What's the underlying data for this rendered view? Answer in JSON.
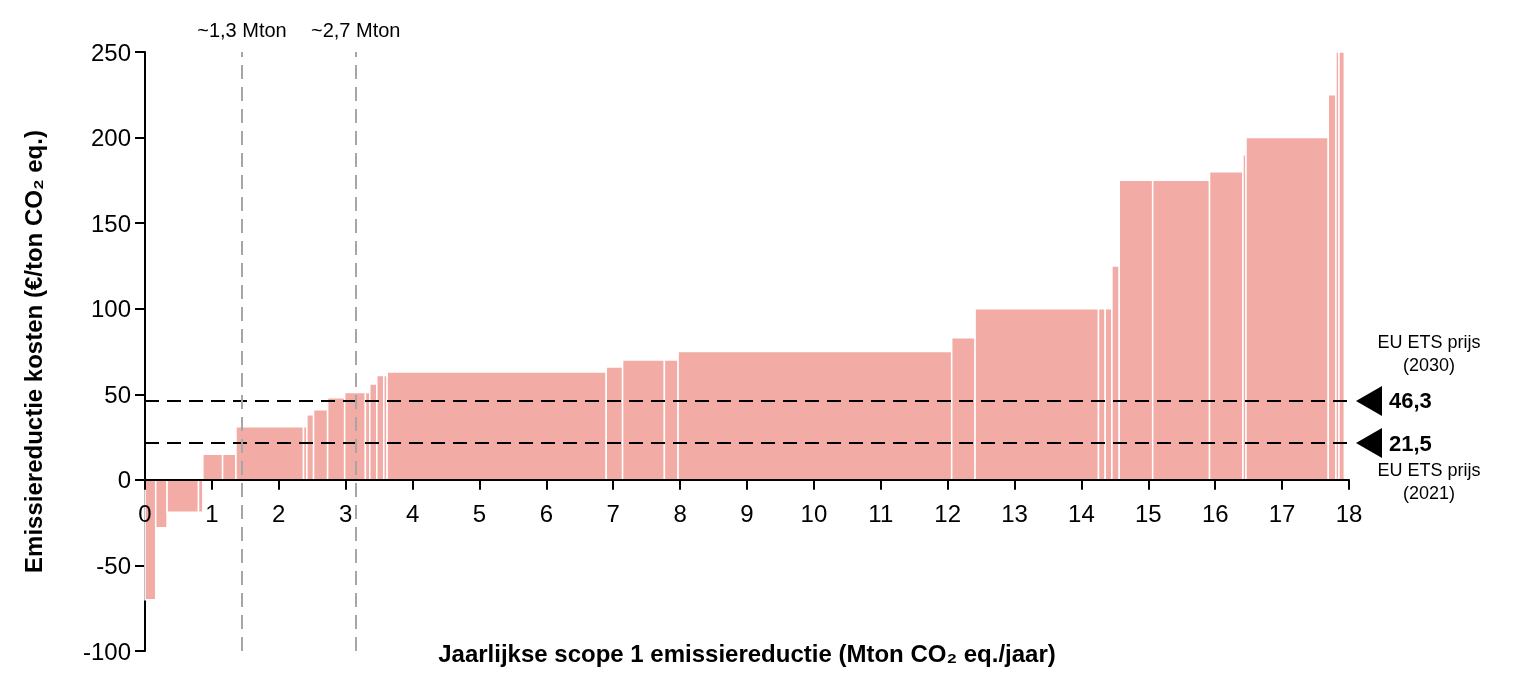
{
  "chart_data": {
    "type": "histogram",
    "xlabel": "Jaarlijkse scope 1 emissiereductie (Mton CO₂ eq./jaar)",
    "ylabel": "Emissiereductie kosten (€/ton CO₂ eq.)",
    "bins": [
      0,
      0.16,
      0.33,
      0.8,
      0.865,
      1.16,
      1.36,
      2.37,
      2.42,
      2.52,
      2.73,
      2.985,
      3.295,
      3.36,
      3.465,
      3.57,
      3.62,
      6.895,
      7.14,
      7.765,
      7.97,
      12.06,
      12.41,
      14.255,
      14.355,
      14.455,
      14.565,
      15.065,
      15.915,
      16.415,
      16.46,
      17.69,
      17.805,
      17.85,
      17.93
    ],
    "values": [
      -70,
      -28,
      -19,
      -19,
      15,
      15,
      31,
      31,
      38,
      41,
      48,
      51,
      51,
      56,
      61,
      61,
      63,
      66,
      70,
      70,
      75,
      83,
      100,
      100,
      100,
      125,
      175,
      175,
      180,
      190,
      200,
      225,
      250,
      250
    ],
    "color": "#f2aba5",
    "xlim": [
      0,
      18
    ],
    "xticks": [
      0,
      1,
      2,
      3,
      4,
      5,
      6,
      7,
      8,
      9,
      10,
      11,
      12,
      13,
      14,
      15,
      16,
      17,
      18
    ],
    "ylim": [
      -100,
      250
    ],
    "yticks": [
      -100,
      -50,
      0,
      50,
      100,
      150,
      200,
      250
    ],
    "ref_lines": [
      {
        "axis": "y",
        "value": 46.3,
        "label": "46,3",
        "color": "#000000",
        "line_style": "dashed"
      },
      {
        "axis": "y",
        "value": 21.5,
        "label": "21,5",
        "color": "#000000",
        "line_style": "dashed"
      },
      {
        "axis": "x",
        "value": 1.45,
        "label": "~1,3 Mton",
        "color": "#a6a6a6",
        "line_style": "dashed"
      },
      {
        "axis": "x",
        "value": 3.15,
        "label": "~2,7 Mton",
        "color": "#a6a6a6",
        "line_style": "dashed"
      }
    ],
    "annotations": [
      "EU ETS prijs\n(2030)",
      "EU ETS prijs\n(2021)"
    ]
  }
}
